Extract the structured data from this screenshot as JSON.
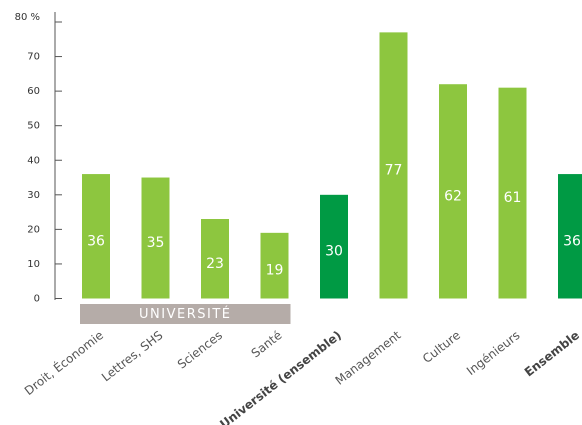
{
  "chart_data": {
    "type": "bar",
    "categories": [
      "Droit, Économie",
      "Lettres, SHS",
      "Sciences",
      "Santé",
      "Université (ensemble)",
      "Management",
      "Culture",
      "Ingénieurs",
      "Ensemble"
    ],
    "values": [
      36,
      35,
      23,
      19,
      30,
      77,
      62,
      61,
      36
    ],
    "colors": [
      "#8dc63f",
      "#8dc63f",
      "#8dc63f",
      "#8dc63f",
      "#009a44",
      "#8dc63f",
      "#8dc63f",
      "#8dc63f",
      "#009a44"
    ],
    "bold_categories": [
      false,
      false,
      false,
      false,
      true,
      false,
      false,
      false,
      true
    ],
    "group_label": "UNIVERSITÉ",
    "ylim": [
      0,
      80
    ],
    "yticks": [
      0,
      10,
      20,
      30,
      40,
      50,
      60,
      70,
      {
        "value": 80,
        "label": "80 %"
      }
    ]
  }
}
